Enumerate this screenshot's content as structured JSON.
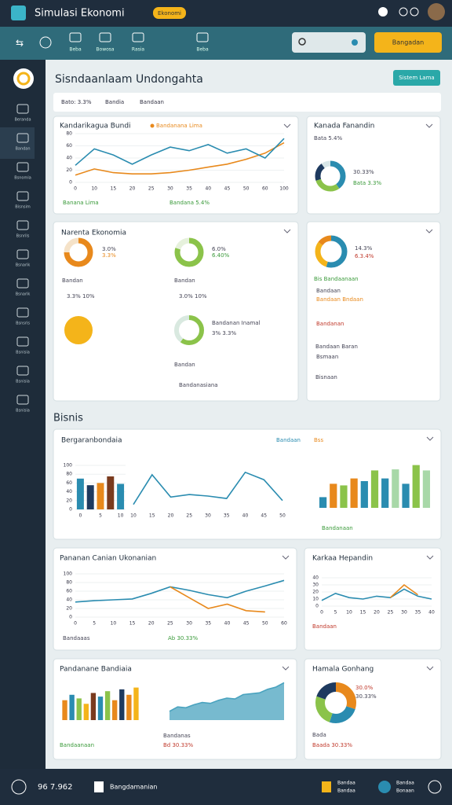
{
  "topbar": {
    "title": "Simulasi Ekonomi",
    "badge": "Ekonomi"
  },
  "nav": {
    "items": [
      "Beba",
      "Bowosa",
      "Rasia",
      "Beba"
    ],
    "button": "Bangadan"
  },
  "sidebar": {
    "items": [
      "Beranda",
      "Bandan",
      "Bsnomia",
      "Bisnsim",
      "Bsnrils",
      "Bsnarik",
      "Bsnarik",
      "Bsnsris",
      "Bsnisia",
      "Bsnisia",
      "Bsnisia"
    ]
  },
  "page": {
    "title": "Sisndaanlaam Undongahta",
    "button": "Sistem Lama",
    "filters": [
      "Bato: 3.3%",
      "Bandia",
      "Bandaan"
    ],
    "section": "Bisnis"
  },
  "footer": {
    "left": "96 7.962",
    "middle": "Bangdamanian",
    "right": [
      "Bandaa",
      "Bandaa",
      "Bandaa",
      "Bonaan"
    ]
  },
  "chart_data": [
    {
      "type": "line",
      "title": "Kandarikagua Bundi",
      "categories": [
        "0",
        "10",
        "15",
        "20",
        "25",
        "30",
        "35",
        "40",
        "45",
        "50",
        "60",
        "100"
      ],
      "series": [
        {
          "name": "Bandanana Lima",
          "color": "#e8891c",
          "values": [
            12,
            22,
            16,
            14,
            14,
            16,
            20,
            25,
            30,
            38,
            48,
            65
          ]
        },
        {
          "color": "#2a8cb0",
          "values": [
            28,
            55,
            45,
            30,
            45,
            58,
            52,
            62,
            48,
            55,
            40,
            72
          ]
        }
      ],
      "ylim": [
        0,
        80
      ],
      "yticks": [
        0,
        20,
        40,
        60,
        80
      ],
      "notes": [
        "Banana Lima",
        "Bandana 5.4%"
      ]
    },
    {
      "type": "donut",
      "title": "Kanada Fanandin",
      "values": [
        40,
        30,
        20,
        10
      ],
      "colors": [
        "#2a8cb0",
        "#8bc34a",
        "#1e3a5f",
        "#d8e6e8"
      ],
      "notes": [
        "30.33%",
        "Bata 3.3%",
        "Bata 5.4%"
      ]
    },
    {
      "type": "donut",
      "title": "Narenta Ekonomia",
      "values": [
        75,
        25
      ],
      "colors": [
        "#e8891c",
        "#f5e2c8"
      ],
      "notes": [
        "3.0%",
        "3.3%",
        "Bandan",
        "3.3% 10%"
      ]
    },
    {
      "type": "donut",
      "values": [
        80,
        20
      ],
      "colors": [
        "#8bc34a",
        "#e6f1dc"
      ],
      "notes": [
        "6.0%",
        "6.40%",
        "Bandan",
        "3.0% 10%"
      ]
    },
    {
      "type": "donut",
      "values": [
        100
      ],
      "colors": [
        "#f4b41a"
      ]
    },
    {
      "type": "donut",
      "values": [
        60,
        40
      ],
      "colors": [
        "#8bc34a",
        "#d9e9e0"
      ],
      "notes": [
        "Bandanan Inamal",
        "3% 3.3%",
        "Bandan",
        "Bandanasiana"
      ]
    },
    {
      "type": "donut",
      "values": [
        55,
        30,
        15
      ],
      "colors": [
        "#2a8cb0",
        "#f4b41a",
        "#e8891c"
      ],
      "notes": [
        "14.3%",
        "6.3.4%",
        "Bis Bandaanaan",
        "Bandaan",
        "Bandaan Bndaan",
        "Bandanan",
        "Bandaan Baran",
        "Bsmaan",
        "Bisnaan"
      ]
    },
    {
      "type": "bar",
      "title": "Bergaranbondaia",
      "categories": [
        "0",
        null,
        "5",
        null,
        "10"
      ],
      "values": [
        70,
        55,
        60,
        75,
        58
      ],
      "colors": [
        "#2a8cb0",
        "#1e3a5f",
        "#e8891c",
        "#7a3b1e",
        "#2a8cb0"
      ],
      "ylim": [
        0,
        100
      ],
      "yticks": [
        0,
        20,
        40,
        60,
        80,
        100
      ]
    },
    {
      "type": "line",
      "categories": [
        "10",
        "15",
        "20",
        "25",
        "30",
        "35",
        "40",
        "45",
        "50"
      ],
      "values": [
        10,
        70,
        25,
        30,
        27,
        22,
        75,
        60,
        18
      ],
      "color": "#2a8cb0",
      "ylim": [
        0,
        100
      ],
      "notes": [
        "Bandaan",
        "Bss"
      ]
    },
    {
      "type": "bar",
      "values": [
        20,
        45,
        42,
        55,
        50,
        70,
        55,
        72,
        45,
        80,
        70
      ],
      "colors": [
        "#2a8cb0",
        "#e8891c",
        "#8bc34a",
        "#e8891c",
        "#2a8cb0",
        "#8bc34a",
        "#2a8cb0",
        "#a8d8a8",
        "#2a8cb0",
        "#8bc34a",
        "#a8d8a8"
      ],
      "ylim": [
        0,
        100
      ],
      "notes": [
        "Bandanaan"
      ]
    },
    {
      "type": "line",
      "title": "Pananan Canian Ukonanian",
      "categories": [
        "0",
        "5",
        "10",
        "15",
        "20",
        "25",
        "30",
        "35",
        "40",
        "45",
        "50",
        "60"
      ],
      "series": [
        {
          "color": "#2a8cb0",
          "values": [
            35,
            38,
            40,
            42,
            55,
            70,
            62,
            52,
            45,
            60,
            72,
            85
          ]
        },
        {
          "color": "#e8891c",
          "values": [
            null,
            null,
            null,
            null,
            null,
            70,
            45,
            20,
            30,
            15,
            12,
            null
          ]
        }
      ],
      "ylim": [
        0,
        100
      ],
      "yticks": [
        0,
        20,
        40,
        60,
        80,
        100
      ],
      "notes": [
        "Bandaaas",
        "Ab 30.33%"
      ]
    },
    {
      "type": "line",
      "title": "Karkaa Hepandin",
      "categories": [
        "0",
        "5",
        "10",
        "15",
        "20",
        "25",
        "30",
        "35",
        "40"
      ],
      "series": [
        {
          "color": "#2a8cb0",
          "values": [
            8,
            18,
            12,
            10,
            14,
            12,
            24,
            14,
            10
          ]
        },
        {
          "color": "#e8891c",
          "values": [
            null,
            null,
            null,
            null,
            null,
            12,
            30,
            16,
            null
          ]
        }
      ],
      "ylim": [
        0,
        40
      ],
      "yticks": [
        0,
        10,
        20,
        30,
        40
      ],
      "notes": [
        "Bandaan"
      ]
    },
    {
      "type": "bar",
      "title": "Pandanane Bandiaia",
      "values": [
        55,
        70,
        60,
        45,
        75,
        65,
        80,
        55,
        85,
        70,
        90
      ],
      "colors": [
        "#e8891c",
        "#2a8cb0",
        "#8bc34a",
        "#f4b41a",
        "#7a3b1e",
        "#2a8cb0",
        "#8bc34a",
        "#e8891c",
        "#1e3a5f",
        "#e8891c",
        "#f4b41a"
      ],
      "ylim": [
        0,
        100
      ],
      "notes": [
        "Bandaanaan"
      ]
    },
    {
      "type": "area",
      "values": [
        20,
        30,
        28,
        35,
        40,
        38,
        45,
        50,
        48,
        58,
        60,
        62,
        70,
        75,
        85
      ],
      "color": "#4aa3bf",
      "ylim": [
        0,
        100
      ],
      "notes": [
        "Bandanas",
        "Bd 30.33%"
      ]
    },
    {
      "type": "donut",
      "title": "Hamala Gonhang",
      "values": [
        30,
        25,
        25,
        20
      ],
      "colors": [
        "#e8891c",
        "#2a8cb0",
        "#8bc34a",
        "#1e3a5f"
      ],
      "notes": [
        "30.0%",
        "30.33%",
        "Bada",
        "Baada 30.33%"
      ]
    }
  ]
}
